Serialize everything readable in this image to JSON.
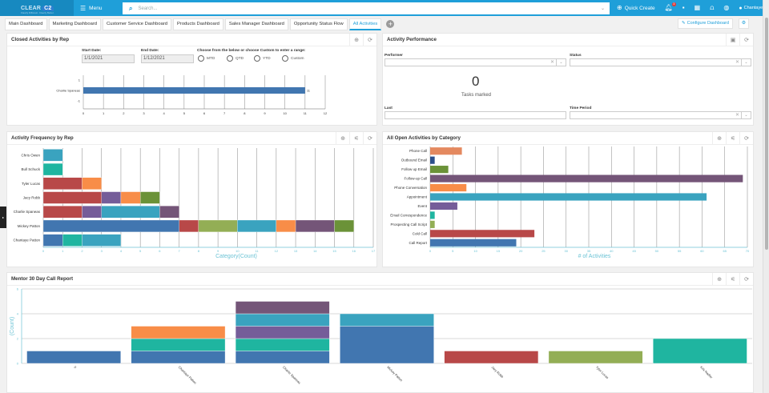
{
  "topbar": {
    "logo_text": "CLEAR",
    "logo_accent": "C2",
    "logo_tagline": "Clearly Different. Clearly Better.",
    "menu_label": "Menu",
    "search_placeholder": "Search...",
    "quick_create_label": "Quick Create",
    "notification_count": "3",
    "user_name": "Chantaye"
  },
  "tabs": [
    {
      "label": "Main Dashboard",
      "active": false
    },
    {
      "label": "Marketing Dashboard",
      "active": false
    },
    {
      "label": "Customer Service Dashboard",
      "active": false
    },
    {
      "label": "Products Dashboard",
      "active": false
    },
    {
      "label": "Sales Manager Dashboard",
      "active": false
    },
    {
      "label": "Opportunity Status Flow",
      "active": false
    },
    {
      "label": "All Activities",
      "active": true
    }
  ],
  "configure_dashboard_label": "Configure Dashboard",
  "closed_activities": {
    "title": "Closed Activities by Rep",
    "start_date_label": "Start Date:",
    "start_date": "1/1/2021",
    "end_date_label": "End Date:",
    "end_date": "1/12/2021",
    "range_label": "Choose from the below or choose Custom to enter a range:",
    "range_options": [
      "MTD",
      "QTD",
      "YTD",
      "Custom"
    ]
  },
  "activity_performance": {
    "title": "Activity Performance",
    "performer_label": "Performer",
    "status_label": "Status",
    "tasks_count": "0",
    "tasks_label": "Tasks marked",
    "last_label": "Last",
    "time_period_label": "Time Period"
  },
  "activity_frequency": {
    "title": "Activity Frequency by Rep"
  },
  "open_activities": {
    "title": "All Open Activities by Category"
  },
  "mentor_report": {
    "title": "Mentor 30 Day Call Report"
  },
  "colors": {
    "blue": "#4176b0",
    "red": "#b84848",
    "orange": "#f88d48",
    "purple": "#755d99",
    "plum": "#745578",
    "teal": "#3aa3bf",
    "green_teal": "#1fb5a0",
    "olive": "#6b9238",
    "lime": "#93ae55",
    "navy": "#2c4f8a",
    "salmon": "#e4895f",
    "accent": "#1f9fd9"
  },
  "chart_data": [
    {
      "id": "closed",
      "type": "bar",
      "orientation": "horizontal",
      "title": "Closed Activities by Rep",
      "categories": [
        "Charlie Spaneas"
      ],
      "values": [
        11
      ],
      "data_labels": [
        "11"
      ],
      "y_ticks": [
        "1",
        "Charlie Spaneas",
        "-1"
      ],
      "xlim": [
        0,
        12
      ],
      "x_ticks": [
        0,
        1,
        2,
        3,
        4,
        5,
        6,
        7,
        8,
        9,
        10,
        11,
        12
      ],
      "color": "#4176b0"
    },
    {
      "id": "frequency",
      "type": "bar",
      "orientation": "horizontal",
      "stacked": true,
      "title": "Activity Frequency by Rep",
      "xlabel": "Category(Count)",
      "xlim": [
        0,
        17
      ],
      "x_ticks": [
        0,
        1,
        2,
        3,
        4,
        5,
        6,
        7,
        8,
        9,
        10,
        11,
        12,
        13,
        14,
        15,
        16,
        17
      ],
      "categories": [
        "Chris Owen",
        "Bull Schuck",
        "Tyler Lucas",
        "Jacy Robb",
        "Charlie Spaneas",
        "Mickey Patton",
        "Chantaye Patton"
      ],
      "stacks": [
        [
          {
            "v": 1,
            "c": "#3aa3bf"
          }
        ],
        [
          {
            "v": 1,
            "c": "#1fb5a0"
          }
        ],
        [
          {
            "v": 2,
            "c": "#b84848"
          },
          {
            "v": 1,
            "c": "#f88d48"
          }
        ],
        [
          {
            "v": 3,
            "c": "#b84848"
          },
          {
            "v": 1,
            "c": "#755d99"
          },
          {
            "v": 1,
            "c": "#f88d48"
          },
          {
            "v": 1,
            "c": "#6b9238"
          }
        ],
        [
          {
            "v": 2,
            "c": "#b84848"
          },
          {
            "v": 1,
            "c": "#755d99"
          },
          {
            "v": 3,
            "c": "#3aa3bf"
          },
          {
            "v": 1,
            "c": "#745578"
          }
        ],
        [
          {
            "v": 7,
            "c": "#4176b0"
          },
          {
            "v": 1,
            "c": "#b84848"
          },
          {
            "v": 2,
            "c": "#93ae55"
          },
          {
            "v": 2,
            "c": "#3aa3bf"
          },
          {
            "v": 1,
            "c": "#f88d48"
          },
          {
            "v": 2,
            "c": "#745578"
          },
          {
            "v": 1,
            "c": "#6b9238"
          }
        ],
        [
          {
            "v": 1,
            "c": "#4176b0"
          },
          {
            "v": 1,
            "c": "#1fb5a0"
          },
          {
            "v": 2,
            "c": "#3aa3bf"
          }
        ]
      ]
    },
    {
      "id": "open",
      "type": "bar",
      "orientation": "horizontal",
      "title": "All Open Activities by Category",
      "xlabel": "# of Activities",
      "xlim": [
        0,
        70
      ],
      "x_ticks": [
        0,
        5,
        10,
        15,
        20,
        25,
        30,
        35,
        40,
        45,
        50,
        55,
        60,
        65,
        70
      ],
      "categories": [
        "Phone Call",
        "Outbound Email",
        "Follow up Email",
        "Follow-up Call",
        "Phone Conversation",
        "Appointment",
        "Event",
        "Email Correspondence",
        "Prospecting Call Script",
        "Cold Call",
        "Call Report"
      ],
      "values": [
        7,
        1,
        4,
        69,
        8,
        61,
        6,
        1,
        1,
        23,
        19
      ],
      "colors": [
        "#e4895f",
        "#2c4f8a",
        "#6b9238",
        "#745578",
        "#f88d48",
        "#3aa3bf",
        "#755d99",
        "#1fb5a0",
        "#93ae55",
        "#b84848",
        "#4176b0"
      ]
    },
    {
      "id": "mentor",
      "type": "bar",
      "orientation": "vertical",
      "stacked": true,
      "title": "Mentor 30 Day Call Report",
      "ylabel": "(Count)",
      "ylim": [
        0,
        6
      ],
      "y_ticks": [
        0,
        2,
        4,
        6
      ],
      "categories": [
        "0",
        "Chantaye Patton",
        "Charlie Spaneas",
        "Mickey Patton",
        "Jacy Robb",
        "Tyler Lucas",
        "Kirk Nadler"
      ],
      "stacks": [
        [
          {
            "v": 1,
            "c": "#4176b0"
          }
        ],
        [
          {
            "v": 1,
            "c": "#4176b0"
          },
          {
            "v": 1,
            "c": "#1fb5a0"
          },
          {
            "v": 1,
            "c": "#f88d48"
          }
        ],
        [
          {
            "v": 1,
            "c": "#4176b0"
          },
          {
            "v": 1,
            "c": "#1fb5a0"
          },
          {
            "v": 1,
            "c": "#755d99"
          },
          {
            "v": 1,
            "c": "#3aa3bf"
          },
          {
            "v": 1,
            "c": "#745578"
          }
        ],
        [
          {
            "v": 3,
            "c": "#4176b0"
          },
          {
            "v": 1,
            "c": "#3aa3bf"
          }
        ],
        [
          {
            "v": 1,
            "c": "#b84848"
          }
        ],
        [
          {
            "v": 1,
            "c": "#93ae55"
          }
        ],
        [
          {
            "v": 2,
            "c": "#1fb5a0"
          }
        ]
      ]
    }
  ]
}
